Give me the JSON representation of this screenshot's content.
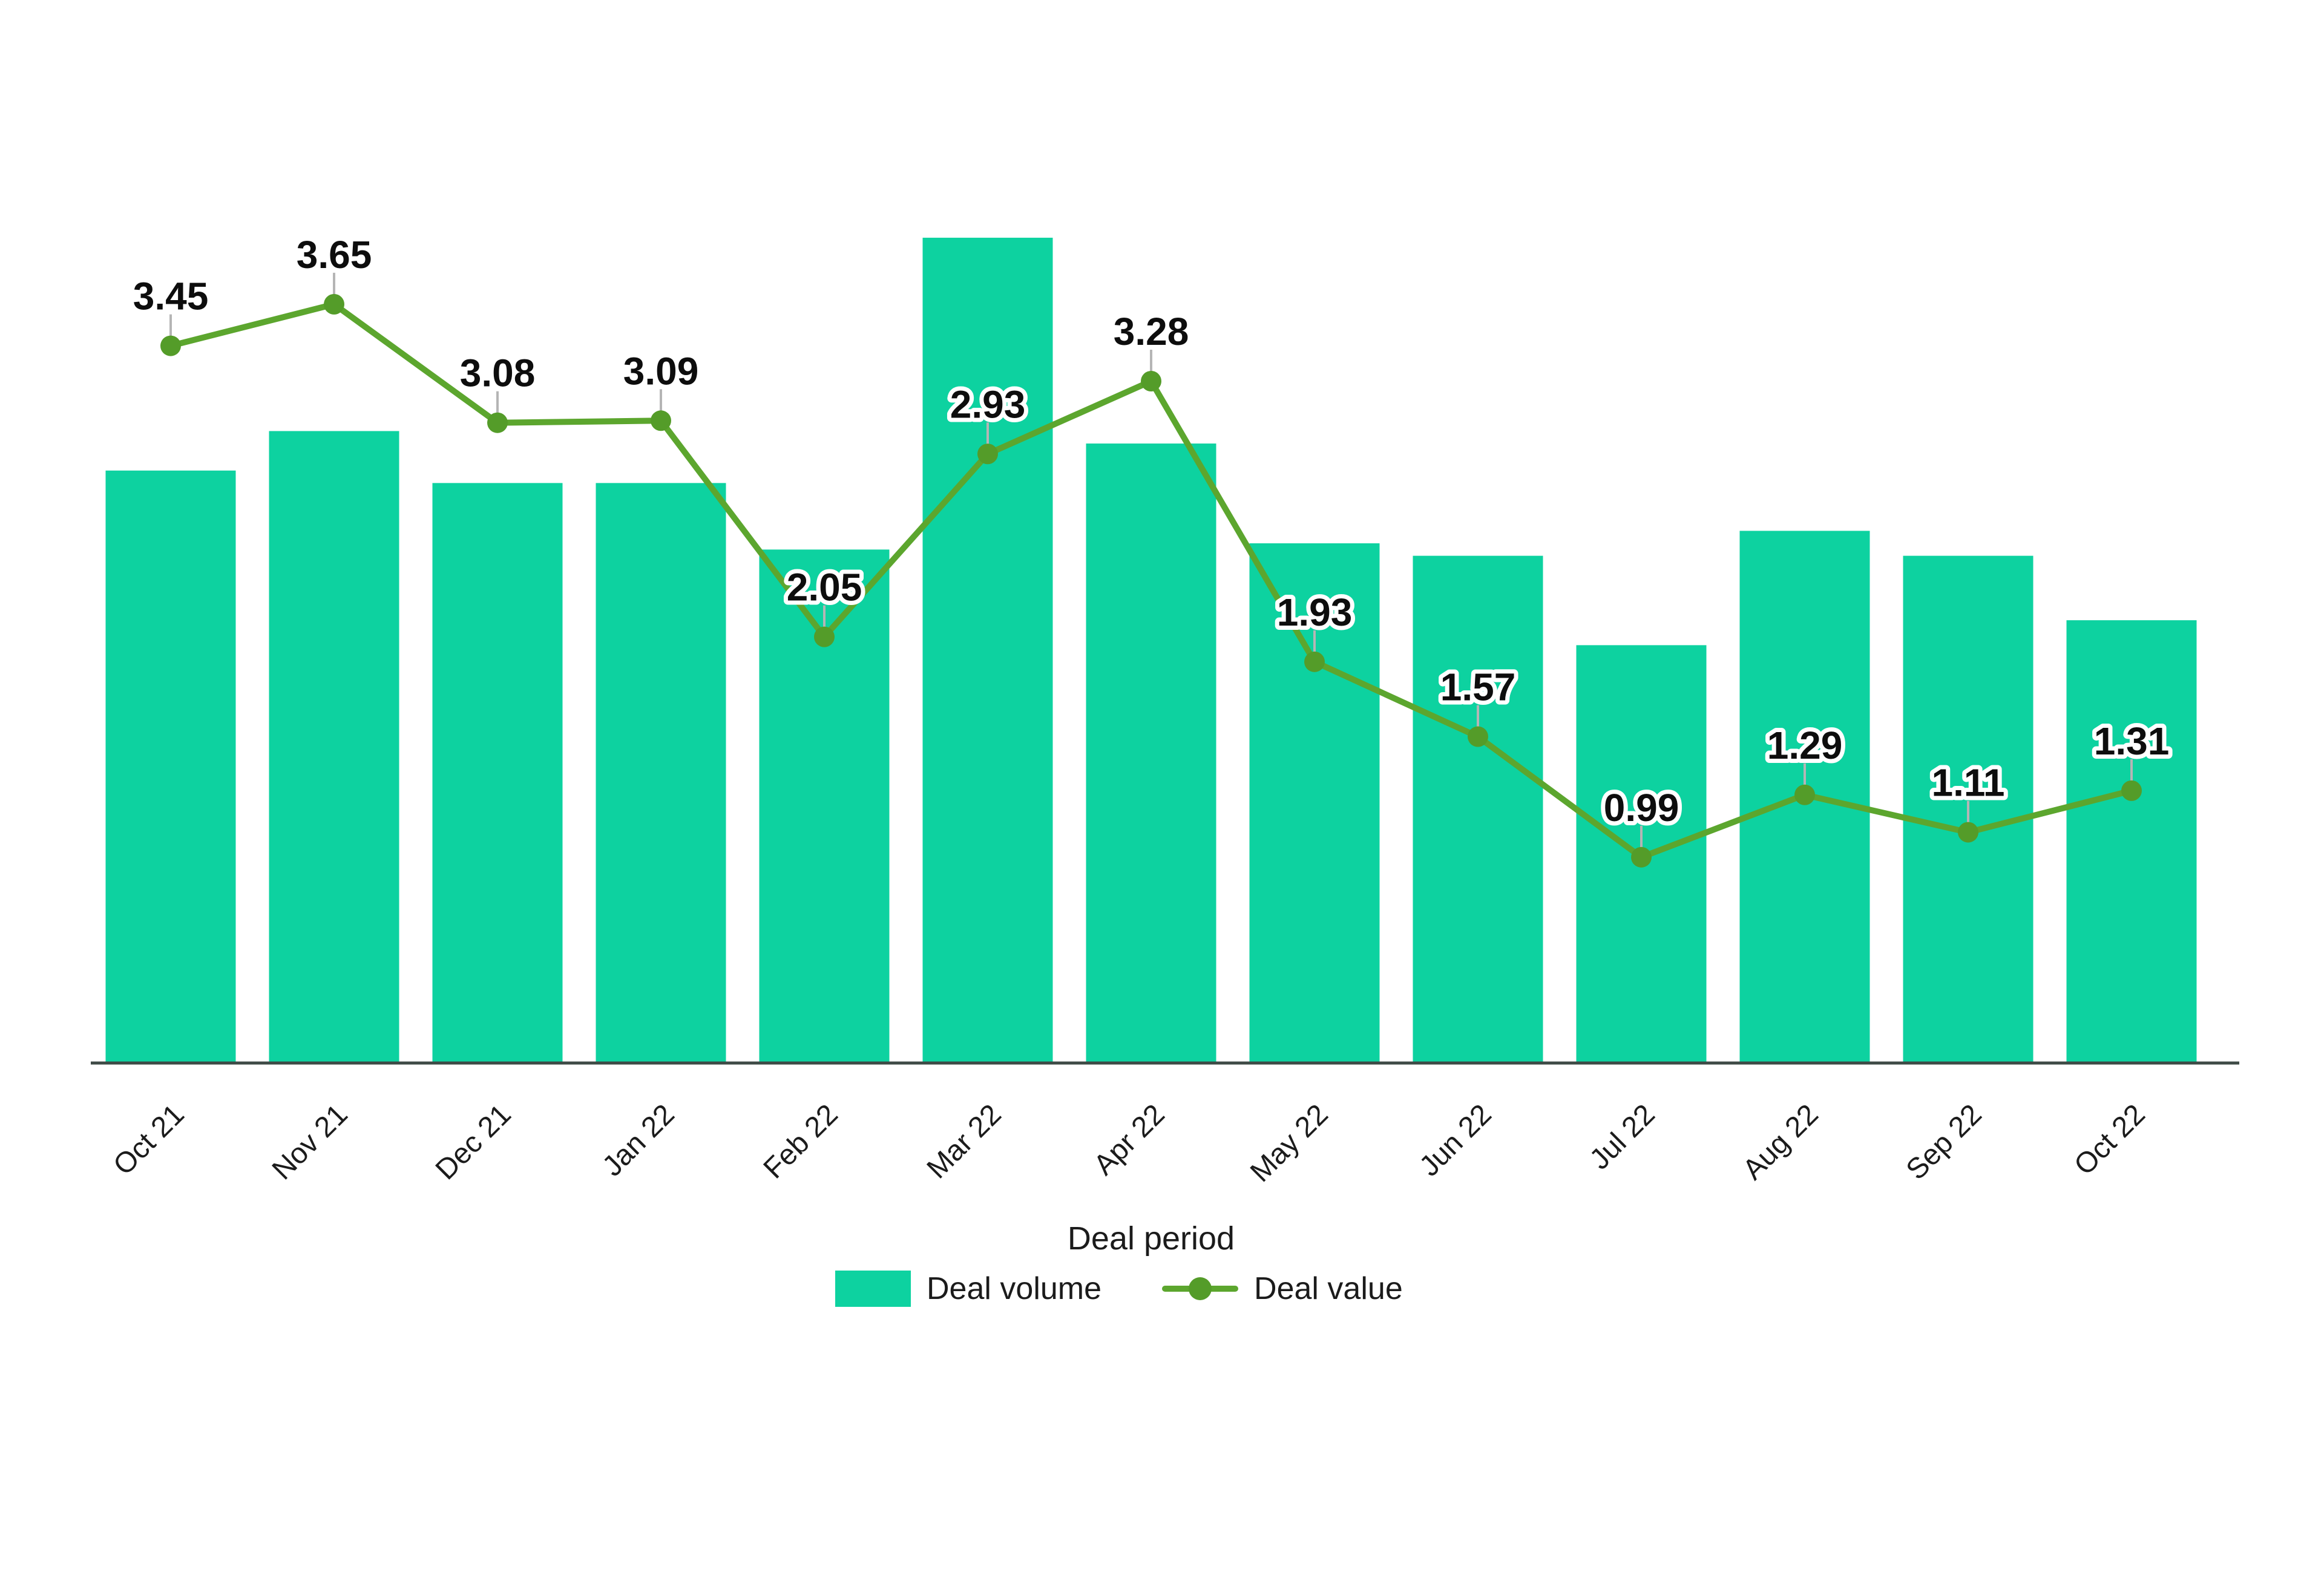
{
  "chart_data": {
    "type": "bar+line combo",
    "categories": [
      "Oct 21",
      "Nov 21",
      "Dec 21",
      "Jan 22",
      "Feb 22",
      "Mar 22",
      "Apr 22",
      "May 22",
      "Jun 22",
      "Jul 22",
      "Aug 22",
      "Sep 22",
      "Oct 22"
    ],
    "series": [
      {
        "name": "Deal volume",
        "type": "bar",
        "color": "#0dd2a0",
        "values_estimated": true,
        "values": [
          2.85,
          3.04,
          2.79,
          2.79,
          2.47,
          3.97,
          2.98,
          2.5,
          2.44,
          2.01,
          2.56,
          2.44,
          2.13
        ]
      },
      {
        "name": "Deal value",
        "type": "line",
        "color": "#5ca62e",
        "marker_color": "#549c29",
        "data_labels_shown": true,
        "data_label_format": "0.00",
        "values": [
          3.45,
          3.65,
          3.08,
          3.09,
          2.05,
          2.93,
          3.28,
          1.93,
          1.57,
          0.99,
          1.29,
          1.11,
          1.31
        ]
      }
    ],
    "title": "",
    "xlabel": "Deal period",
    "ylabel": "",
    "ylim": [
      0,
      5.1
    ],
    "y_axis_visible": false,
    "gridlines": false,
    "x_tick_rotation_deg": 45,
    "legend_position": "bottom-center",
    "axis_line_color": "#3e4a46",
    "data_label_color": "#0d0d0d",
    "data_label_halo_color": "#ffffff",
    "leader_line_color": "#b5b5b5",
    "tick_label_color": "#1b1b1b"
  }
}
